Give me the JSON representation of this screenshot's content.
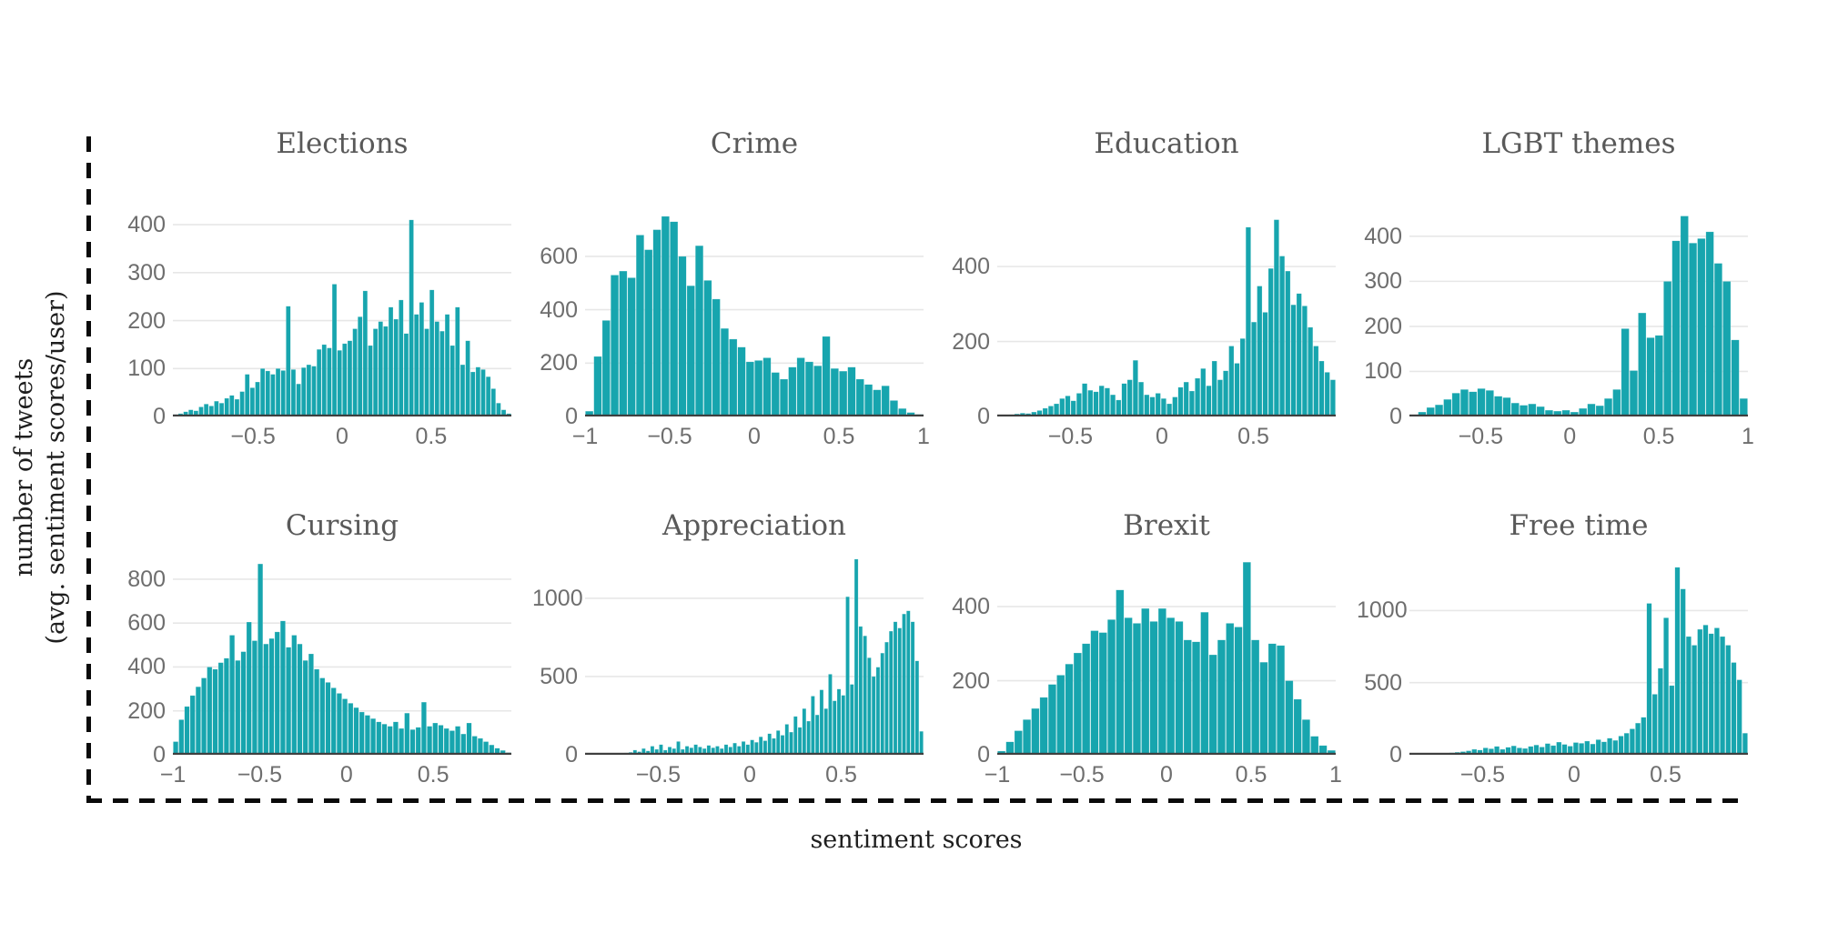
{
  "figure": {
    "ylabel_line1": "number of tweets",
    "ylabel_line2": "(avg. sentiment scores/user)",
    "xlabel": "sentiment scores",
    "bar_color": "#17A5AE",
    "bar_edge_color": "rgba(255,255,255,0.45)",
    "grid_color": "#e7e7e7",
    "axis_line_color": "#3f3f3f",
    "frame_style": "dashed-black-L"
  },
  "chart_data": [
    {
      "type": "bar",
      "title": "Elections",
      "xlabel": "sentiment scores",
      "ylabel": "number of tweets",
      "xlim": [
        -0.95,
        0.95
      ],
      "ylim": [
        0,
        512
      ],
      "xtick_values": [
        -0.5,
        0,
        0.5
      ],
      "xtick_labels": [
        "−0.5",
        "0",
        "0.5"
      ],
      "ytick_values": [
        0,
        100,
        200,
        300,
        400
      ],
      "grid": true,
      "values": [
        4,
        6,
        10,
        14,
        12,
        20,
        26,
        22,
        32,
        28,
        38,
        44,
        36,
        52,
        88,
        60,
        72,
        100,
        95,
        88,
        100,
        96,
        230,
        98,
        68,
        102,
        108,
        105,
        140,
        150,
        143,
        276,
        138,
        152,
        158,
        183,
        208,
        262,
        148,
        183,
        198,
        188,
        228,
        203,
        243,
        173,
        410,
        213,
        238,
        183,
        264,
        198,
        178,
        213,
        148,
        228,
        108,
        158,
        93,
        103,
        98,
        83,
        58,
        28,
        14,
        6
      ]
    },
    {
      "type": "bar",
      "title": "Crime",
      "xlabel": "sentiment scores",
      "ylabel": "number of tweets",
      "xlim": [
        -1,
        1
      ],
      "ylim": [
        0,
        920
      ],
      "xtick_values": [
        -1,
        -0.5,
        0,
        0.5,
        1
      ],
      "xtick_labels": [
        "−1",
        "−0.5",
        "0",
        "0.5",
        "1"
      ],
      "ytick_values": [
        0,
        200,
        400,
        600
      ],
      "grid": true,
      "values": [
        20,
        225,
        360,
        530,
        545,
        520,
        680,
        625,
        700,
        750,
        730,
        600,
        490,
        640,
        510,
        440,
        330,
        290,
        260,
        205,
        210,
        220,
        165,
        140,
        185,
        220,
        205,
        190,
        300,
        180,
        170,
        185,
        140,
        120,
        100,
        115,
        60,
        30,
        15,
        8
      ]
    },
    {
      "type": "bar",
      "title": "Education",
      "xlabel": "sentiment scores",
      "ylabel": "number of tweets",
      "xlim": [
        -0.9,
        0.95
      ],
      "ylim": [
        0,
        655
      ],
      "xtick_values": [
        -0.5,
        0,
        0.5
      ],
      "xtick_labels": [
        "−0.5",
        "0",
        "0.5"
      ],
      "ytick_values": [
        0,
        200,
        400
      ],
      "grid": true,
      "values": [
        3,
        4,
        5,
        7,
        9,
        8,
        12,
        16,
        22,
        28,
        34,
        48,
        55,
        42,
        62,
        88,
        70,
        66,
        82,
        76,
        58,
        44,
        88,
        98,
        150,
        92,
        58,
        52,
        62,
        48,
        34,
        52,
        78,
        92,
        68,
        102,
        128,
        82,
        148,
        98,
        122,
        188,
        142,
        208,
        505,
        252,
        348,
        278,
        395,
        525,
        428,
        388,
        298,
        328,
        295,
        238,
        188,
        148,
        118,
        98
      ]
    },
    {
      "type": "bar",
      "title": "LGBT themes",
      "xlabel": "sentiment scores",
      "ylabel": "number of tweets",
      "xlim": [
        -0.9,
        1
      ],
      "ylim": [
        0,
        545
      ],
      "xtick_values": [
        -0.5,
        0,
        0.5,
        1
      ],
      "xtick_labels": [
        "−0.5",
        "0",
        "0.5",
        "1"
      ],
      "ytick_values": [
        0,
        100,
        200,
        300,
        400
      ],
      "grid": true,
      "values": [
        4,
        10,
        20,
        26,
        38,
        52,
        60,
        55,
        62,
        58,
        45,
        42,
        30,
        25,
        28,
        22,
        14,
        12,
        14,
        10,
        18,
        28,
        24,
        40,
        60,
        195,
        102,
        230,
        175,
        180,
        300,
        390,
        445,
        385,
        395,
        410,
        340,
        300,
        170,
        40
      ]
    },
    {
      "type": "bar",
      "title": "Cursing",
      "xlabel": "sentiment scores",
      "ylabel": "number of tweets",
      "xlim": [
        -1,
        0.95
      ],
      "ylim": [
        0,
        920
      ],
      "xtick_values": [
        -1,
        -0.5,
        0,
        0.5
      ],
      "xtick_labels": [
        "−1",
        "−0.5",
        "0",
        "0.5"
      ],
      "ytick_values": [
        0,
        200,
        400,
        600,
        800
      ],
      "grid": true,
      "values": [
        60,
        160,
        220,
        270,
        310,
        350,
        400,
        390,
        420,
        440,
        545,
        430,
        470,
        605,
        520,
        870,
        505,
        530,
        560,
        610,
        490,
        545,
        505,
        430,
        460,
        390,
        350,
        330,
        305,
        280,
        255,
        235,
        215,
        195,
        180,
        165,
        150,
        140,
        130,
        150,
        120,
        190,
        115,
        125,
        240,
        130,
        145,
        135,
        120,
        110,
        130,
        95,
        145,
        85,
        75,
        60,
        45,
        30,
        20,
        10
      ]
    },
    {
      "type": "bar",
      "title": "Appreciation",
      "xlabel": "sentiment scores",
      "ylabel": "number of tweets",
      "xlim": [
        -0.9,
        0.95
      ],
      "ylim": [
        0,
        1290
      ],
      "xtick_values": [
        -0.5,
        0,
        0.5
      ],
      "xtick_labels": [
        "−0.5",
        "0",
        "0.5"
      ],
      "ytick_values": [
        0,
        500,
        1000
      ],
      "grid": true,
      "values": [
        3,
        3,
        4,
        5,
        4,
        6,
        8,
        7,
        10,
        12,
        16,
        30,
        20,
        40,
        25,
        55,
        35,
        65,
        30,
        50,
        40,
        85,
        35,
        55,
        45,
        65,
        50,
        40,
        60,
        45,
        55,
        40,
        65,
        50,
        75,
        55,
        85,
        65,
        95,
        80,
        115,
        90,
        135,
        105,
        155,
        125,
        195,
        145,
        245,
        175,
        295,
        215,
        375,
        255,
        415,
        295,
        515,
        345,
        420,
        380,
        1010,
        450,
        1250,
        820,
        760,
        620,
        500,
        560,
        650,
        720,
        790,
        850,
        810,
        900,
        920,
        850,
        600,
        150
      ]
    },
    {
      "type": "bar",
      "title": "Brexit",
      "xlabel": "sentiment scores",
      "ylabel": "number of tweets",
      "xlim": [
        -1,
        1
      ],
      "ylim": [
        0,
        545
      ],
      "xtick_values": [
        -1,
        -0.5,
        0,
        0.5,
        1
      ],
      "xtick_labels": [
        "−1",
        "−0.5",
        "0",
        "0.5",
        "1"
      ],
      "ytick_values": [
        0,
        200,
        400
      ],
      "grid": true,
      "values": [
        10,
        35,
        65,
        95,
        125,
        155,
        190,
        215,
        245,
        275,
        300,
        335,
        330,
        365,
        445,
        370,
        355,
        395,
        360,
        395,
        370,
        360,
        310,
        305,
        385,
        270,
        310,
        355,
        345,
        520,
        310,
        250,
        300,
        295,
        200,
        150,
        95,
        50,
        25,
        12
      ]
    },
    {
      "type": "bar",
      "title": "Free time",
      "xlabel": "sentiment scores",
      "ylabel": "number of tweets",
      "xlim": [
        -0.9,
        0.95
      ],
      "ylim": [
        0,
        1400
      ],
      "xtick_values": [
        -0.5,
        0,
        0.5
      ],
      "xtick_labels": [
        "−0.5",
        "0",
        "0.5"
      ],
      "ytick_values": [
        0,
        500,
        1000
      ],
      "grid": true,
      "values": [
        2,
        3,
        4,
        5,
        6,
        8,
        10,
        14,
        18,
        22,
        28,
        38,
        33,
        48,
        42,
        58,
        38,
        52,
        62,
        48,
        44,
        58,
        68,
        54,
        78,
        64,
        88,
        72,
        60,
        85,
        80,
        95,
        75,
        105,
        90,
        115,
        100,
        130,
        150,
        180,
        220,
        260,
        1050,
        420,
        600,
        950,
        480,
        1300,
        1150,
        820,
        760,
        870,
        900,
        840,
        880,
        820,
        760,
        640,
        520,
        150
      ]
    }
  ]
}
